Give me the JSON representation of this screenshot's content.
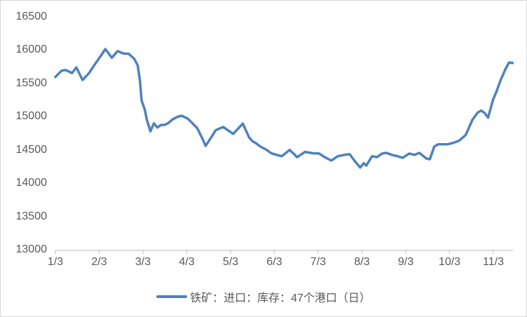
{
  "chart_data": {
    "type": "line",
    "title": "",
    "legend": "铁矿：进口：库存：47个港口（日）",
    "legend_position": "bottom-center",
    "grid": false,
    "xlabel": "",
    "ylabel": "",
    "x_axis": {
      "labels": [
        "1/3",
        "2/3",
        "3/3",
        "4/3",
        "5/3",
        "6/3",
        "7/3",
        "8/3",
        "9/3",
        "10/3",
        "11/3"
      ],
      "domain": [
        1,
        11.45
      ]
    },
    "y_axis": {
      "min": 13000,
      "max": 16500,
      "step": 500,
      "ticks": [
        16500,
        16000,
        15500,
        15000,
        14500,
        14000,
        13500,
        13000
      ]
    },
    "series": [
      {
        "name": "铁矿：进口：库存：47个港口（日）",
        "color": "#4F81BD",
        "points": [
          [
            1.0,
            15595
          ],
          [
            1.14,
            15690
          ],
          [
            1.24,
            15700
          ],
          [
            1.38,
            15655
          ],
          [
            1.48,
            15740
          ],
          [
            1.62,
            15550
          ],
          [
            1.77,
            15655
          ],
          [
            1.91,
            15795
          ],
          [
            2.03,
            15905
          ],
          [
            2.14,
            16015
          ],
          [
            2.29,
            15885
          ],
          [
            2.42,
            15985
          ],
          [
            2.55,
            15950
          ],
          [
            2.67,
            15945
          ],
          [
            2.8,
            15870
          ],
          [
            2.88,
            15770
          ],
          [
            2.93,
            15550
          ],
          [
            2.97,
            15240
          ],
          [
            3.04,
            15110
          ],
          [
            3.09,
            14950
          ],
          [
            3.17,
            14780
          ],
          [
            3.25,
            14900
          ],
          [
            3.33,
            14835
          ],
          [
            3.41,
            14875
          ],
          [
            3.49,
            14875
          ],
          [
            3.57,
            14900
          ],
          [
            3.68,
            14960
          ],
          [
            3.78,
            14995
          ],
          [
            3.88,
            15015
          ],
          [
            4.02,
            14970
          ],
          [
            4.13,
            14900
          ],
          [
            4.24,
            14825
          ],
          [
            4.34,
            14690
          ],
          [
            4.43,
            14560
          ],
          [
            4.55,
            14680
          ],
          [
            4.66,
            14795
          ],
          [
            4.83,
            14845
          ],
          [
            5.06,
            14740
          ],
          [
            5.28,
            14895
          ],
          [
            5.42,
            14690
          ],
          [
            5.5,
            14630
          ],
          [
            5.58,
            14600
          ],
          [
            5.68,
            14550
          ],
          [
            5.8,
            14510
          ],
          [
            5.93,
            14450
          ],
          [
            6.05,
            14425
          ],
          [
            6.17,
            14405
          ],
          [
            6.35,
            14500
          ],
          [
            6.52,
            14390
          ],
          [
            6.7,
            14470
          ],
          [
            6.88,
            14450
          ],
          [
            7.02,
            14445
          ],
          [
            7.15,
            14390
          ],
          [
            7.3,
            14340
          ],
          [
            7.45,
            14405
          ],
          [
            7.6,
            14425
          ],
          [
            7.72,
            14435
          ],
          [
            7.85,
            14320
          ],
          [
            7.96,
            14235
          ],
          [
            8.04,
            14300
          ],
          [
            8.1,
            14265
          ],
          [
            8.23,
            14405
          ],
          [
            8.34,
            14390
          ],
          [
            8.46,
            14445
          ],
          [
            8.56,
            14455
          ],
          [
            8.68,
            14425
          ],
          [
            8.81,
            14405
          ],
          [
            8.93,
            14380
          ],
          [
            9.08,
            14445
          ],
          [
            9.2,
            14425
          ],
          [
            9.31,
            14455
          ],
          [
            9.47,
            14370
          ],
          [
            9.55,
            14360
          ],
          [
            9.65,
            14550
          ],
          [
            9.74,
            14585
          ],
          [
            9.95,
            14585
          ],
          [
            10.08,
            14605
          ],
          [
            10.21,
            14635
          ],
          [
            10.37,
            14725
          ],
          [
            10.52,
            14950
          ],
          [
            10.64,
            15060
          ],
          [
            10.72,
            15090
          ],
          [
            10.8,
            15055
          ],
          [
            10.88,
            14985
          ],
          [
            10.99,
            15250
          ],
          [
            11.07,
            15375
          ],
          [
            11.17,
            15555
          ],
          [
            11.28,
            15720
          ],
          [
            11.36,
            15815
          ],
          [
            11.44,
            15805
          ]
        ]
      }
    ],
    "colors": {
      "line": "#4F81BD",
      "axis": "#c6c6c6",
      "text": "#595959",
      "background": "#ffffff",
      "border": "#d6d6d6"
    }
  }
}
